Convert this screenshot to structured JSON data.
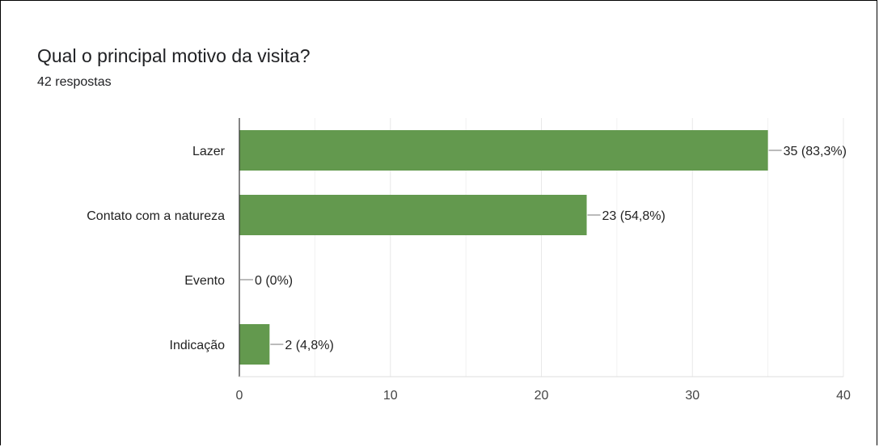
{
  "form": {
    "question": "Qual o principal motivo da visita?",
    "responses_label": "42 respostas"
  },
  "colors": {
    "bar": "#63994e",
    "grid": "#e8e8e8",
    "axis": "#333333"
  },
  "chart_data": {
    "type": "bar",
    "orientation": "horizontal",
    "categories": [
      "Lazer",
      "Contato com a natureza",
      "Evento",
      "Indicação"
    ],
    "values": [
      35,
      23,
      0,
      2
    ],
    "value_labels": [
      "35 (83,3%)",
      "23 (54,8%)",
      "0 (0%)",
      "2 (4,8%)"
    ],
    "xlim": [
      0,
      40
    ],
    "x_ticks": [
      0,
      10,
      20,
      30,
      40
    ],
    "grid": true
  }
}
